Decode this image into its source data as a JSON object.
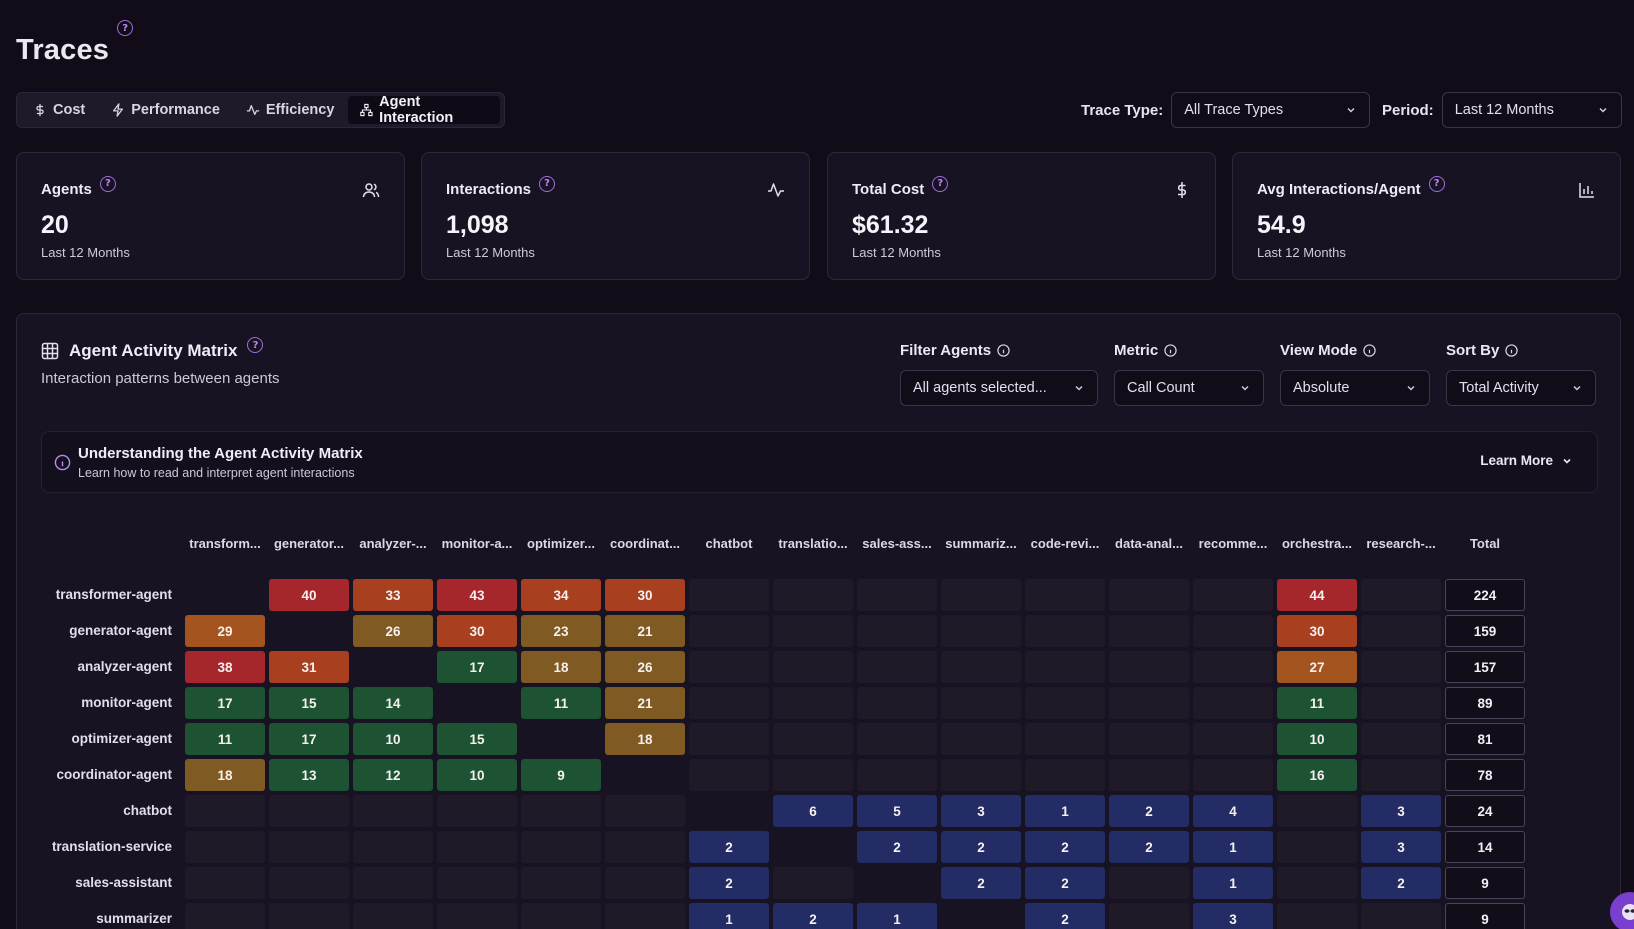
{
  "page": {
    "title": "Traces"
  },
  "tabs": [
    {
      "label": "Cost",
      "icon": "dollar-icon"
    },
    {
      "label": "Performance",
      "icon": "zap-icon"
    },
    {
      "label": "Efficiency",
      "icon": "activity-icon"
    },
    {
      "label": "Agent Interaction",
      "icon": "network-icon",
      "active": true
    }
  ],
  "filters": {
    "trace_type_label": "Trace Type:",
    "trace_type_value": "All Trace Types",
    "period_label": "Period:",
    "period_value": "Last 12 Months"
  },
  "cards": [
    {
      "label": "Agents",
      "value": "20",
      "sub": "Last 12 Months",
      "icon": "users-icon"
    },
    {
      "label": "Interactions",
      "value": "1,098",
      "sub": "Last 12 Months",
      "icon": "activity-icon"
    },
    {
      "label": "Total Cost",
      "value": "$61.32",
      "sub": "Last 12 Months",
      "icon": "dollar-icon"
    },
    {
      "label": "Avg Interactions/Agent",
      "value": "54.9",
      "sub": "Last 12 Months",
      "icon": "bar-chart-icon"
    }
  ],
  "matrix_panel": {
    "title": "Agent Activity Matrix",
    "subtitle": "Interaction patterns between agents",
    "filter_agents_label": "Filter Agents",
    "filter_agents_value": "All agents selected...",
    "metric_label": "Metric",
    "metric_value": "Call Count",
    "view_mode_label": "View Mode",
    "view_mode_value": "Absolute",
    "sort_by_label": "Sort By",
    "sort_by_value": "Total Activity",
    "understand_title": "Understanding the Agent Activity Matrix",
    "understand_sub": "Learn how to read and interpret agent interactions",
    "learn_more": "Learn More"
  },
  "colors": {
    "red": "#a5272c",
    "red_orange": "#a8401f",
    "orange": "#a4541f",
    "amber": "#7f5a23",
    "green": "#1d5232",
    "blue": "#232c64"
  },
  "matrix": {
    "columns": [
      "transform...",
      "generator...",
      "analyzer-...",
      "monitor-a...",
      "optimizer...",
      "coordinat...",
      "chatbot",
      "translatio...",
      "sales-ass...",
      "summariz...",
      "code-revi...",
      "data-anal...",
      "recomme...",
      "orchestra...",
      "research-..."
    ],
    "total_label": "Total",
    "rows": [
      {
        "label": "transformer-agent",
        "total": "224",
        "cells": [
          null,
          "40",
          "33",
          "43",
          "34",
          "30",
          null,
          null,
          null,
          null,
          null,
          null,
          null,
          "44",
          null
        ]
      },
      {
        "label": "generator-agent",
        "total": "159",
        "cells": [
          "29",
          null,
          "26",
          "30",
          "23",
          "21",
          null,
          null,
          null,
          null,
          null,
          null,
          null,
          "30",
          null
        ]
      },
      {
        "label": "analyzer-agent",
        "total": "157",
        "cells": [
          "38",
          "31",
          null,
          "17",
          "18",
          "26",
          null,
          null,
          null,
          null,
          null,
          null,
          null,
          "27",
          null
        ]
      },
      {
        "label": "monitor-agent",
        "total": "89",
        "cells": [
          "17",
          "15",
          "14",
          null,
          "11",
          "21",
          null,
          null,
          null,
          null,
          null,
          null,
          null,
          "11",
          null
        ]
      },
      {
        "label": "optimizer-agent",
        "total": "81",
        "cells": [
          "11",
          "17",
          "10",
          "15",
          null,
          "18",
          null,
          null,
          null,
          null,
          null,
          null,
          null,
          "10",
          null
        ]
      },
      {
        "label": "coordinator-agent",
        "total": "78",
        "cells": [
          "18",
          "13",
          "12",
          "10",
          "9",
          null,
          null,
          null,
          null,
          null,
          null,
          null,
          null,
          "16",
          null
        ]
      },
      {
        "label": "chatbot",
        "total": "24",
        "cells": [
          null,
          null,
          null,
          null,
          null,
          null,
          null,
          "6",
          "5",
          "3",
          "1",
          "2",
          "4",
          null,
          "3"
        ]
      },
      {
        "label": "translation-service",
        "total": "14",
        "cells": [
          null,
          null,
          null,
          null,
          null,
          null,
          "2",
          null,
          "2",
          "2",
          "2",
          "2",
          "1",
          null,
          "3"
        ]
      },
      {
        "label": "sales-assistant",
        "total": "9",
        "cells": [
          null,
          null,
          null,
          null,
          null,
          null,
          "2",
          null,
          null,
          "2",
          "2",
          null,
          "1",
          null,
          "2"
        ]
      },
      {
        "label": "summarizer",
        "total": "9",
        "cells": [
          null,
          null,
          null,
          null,
          null,
          null,
          "1",
          "2",
          "1",
          null,
          "2",
          null,
          "3",
          null,
          null
        ]
      }
    ]
  }
}
